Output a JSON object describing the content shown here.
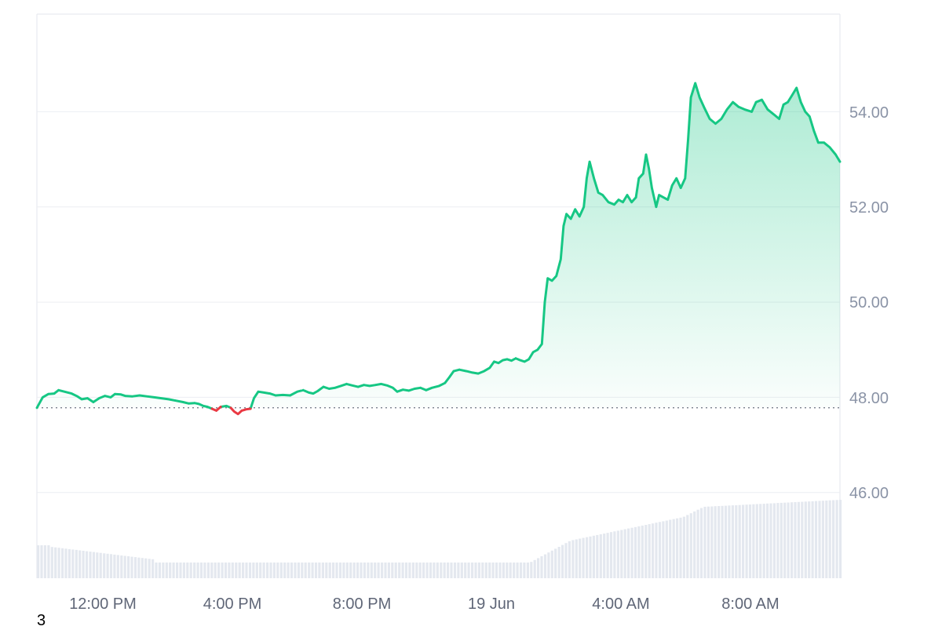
{
  "chart_data": {
    "type": "area",
    "x_ticks": [
      "12:00 PM",
      "4:00 PM",
      "8:00 PM",
      "19 Jun",
      "4:00 AM",
      "8:00 AM"
    ],
    "y_ticks": [
      "46.00",
      "48.00",
      "50.00",
      "52.00",
      "54.00"
    ],
    "ylim": [
      44.2,
      56.05
    ],
    "baseline": 47.78,
    "x_range_hours": [
      0,
      24.7
    ],
    "grid": true,
    "colors": {
      "up": "#16c784",
      "down": "#ea3943",
      "area_top": "#16c784",
      "volume": "#e4e8ef",
      "grid": "#eceef2",
      "axis_text": "#8a93a6"
    },
    "series": [
      {
        "values": [
          [
            0.0,
            47.78
          ],
          [
            0.2,
            48.0
          ],
          [
            0.4,
            48.07
          ],
          [
            0.6,
            48.08
          ],
          [
            0.75,
            48.15
          ],
          [
            0.95,
            48.12
          ],
          [
            1.2,
            48.08
          ],
          [
            1.4,
            48.02
          ],
          [
            1.55,
            47.96
          ],
          [
            1.75,
            47.98
          ],
          [
            1.95,
            47.9
          ],
          [
            2.15,
            47.98
          ],
          [
            2.35,
            48.03
          ],
          [
            2.55,
            48.0
          ],
          [
            2.7,
            48.07
          ],
          [
            2.9,
            48.06
          ],
          [
            3.05,
            48.03
          ],
          [
            3.3,
            48.02
          ],
          [
            3.55,
            48.04
          ],
          [
            3.8,
            48.02
          ],
          [
            4.05,
            48.0
          ],
          [
            4.3,
            47.98
          ],
          [
            4.55,
            47.96
          ],
          [
            4.8,
            47.93
          ],
          [
            5.05,
            47.9
          ],
          [
            5.25,
            47.87
          ],
          [
            5.45,
            47.88
          ],
          [
            5.6,
            47.86
          ],
          [
            5.75,
            47.82
          ],
          [
            5.9,
            47.8
          ],
          [
            6.05,
            47.76
          ],
          [
            6.2,
            47.72
          ],
          [
            6.35,
            47.8
          ],
          [
            6.55,
            47.82
          ],
          [
            6.7,
            47.78
          ],
          [
            6.82,
            47.7
          ],
          [
            6.95,
            47.65
          ],
          [
            7.08,
            47.72
          ],
          [
            7.25,
            47.75
          ],
          [
            7.38,
            47.76
          ],
          [
            7.5,
            47.98
          ],
          [
            7.65,
            48.12
          ],
          [
            7.85,
            48.1
          ],
          [
            8.05,
            48.08
          ],
          [
            8.25,
            48.04
          ],
          [
            8.5,
            48.05
          ],
          [
            8.75,
            48.04
          ],
          [
            9.0,
            48.12
          ],
          [
            9.2,
            48.15
          ],
          [
            9.4,
            48.1
          ],
          [
            9.55,
            48.08
          ],
          [
            9.7,
            48.13
          ],
          [
            9.9,
            48.22
          ],
          [
            10.1,
            48.18
          ],
          [
            10.3,
            48.2
          ],
          [
            10.5,
            48.24
          ],
          [
            10.7,
            48.28
          ],
          [
            10.9,
            48.25
          ],
          [
            11.1,
            48.22
          ],
          [
            11.3,
            48.26
          ],
          [
            11.5,
            48.24
          ],
          [
            11.7,
            48.26
          ],
          [
            11.9,
            48.28
          ],
          [
            12.1,
            48.25
          ],
          [
            12.3,
            48.2
          ],
          [
            12.45,
            48.12
          ],
          [
            12.65,
            48.16
          ],
          [
            12.85,
            48.14
          ],
          [
            13.05,
            48.18
          ],
          [
            13.25,
            48.2
          ],
          [
            13.45,
            48.15
          ],
          [
            13.65,
            48.2
          ],
          [
            13.9,
            48.24
          ],
          [
            14.1,
            48.3
          ],
          [
            14.25,
            48.42
          ],
          [
            14.4,
            48.55
          ],
          [
            14.6,
            48.58
          ],
          [
            14.85,
            48.55
          ],
          [
            15.05,
            48.52
          ],
          [
            15.25,
            48.5
          ],
          [
            15.45,
            48.55
          ],
          [
            15.65,
            48.62
          ],
          [
            15.8,
            48.75
          ],
          [
            15.95,
            48.72
          ],
          [
            16.1,
            48.78
          ],
          [
            16.25,
            48.8
          ],
          [
            16.4,
            48.77
          ],
          [
            16.55,
            48.82
          ],
          [
            16.7,
            48.78
          ],
          [
            16.85,
            48.75
          ],
          [
            17.0,
            48.8
          ],
          [
            17.15,
            48.95
          ],
          [
            17.3,
            49.0
          ],
          [
            17.45,
            49.12
          ],
          [
            17.55,
            50.0
          ],
          [
            17.65,
            50.5
          ],
          [
            17.8,
            50.45
          ],
          [
            17.95,
            50.55
          ],
          [
            18.1,
            50.9
          ],
          [
            18.2,
            51.6
          ],
          [
            18.3,
            51.85
          ],
          [
            18.45,
            51.75
          ],
          [
            18.6,
            51.95
          ],
          [
            18.75,
            51.8
          ],
          [
            18.9,
            52.0
          ],
          [
            19.0,
            52.6
          ],
          [
            19.1,
            52.95
          ],
          [
            19.25,
            52.6
          ],
          [
            19.4,
            52.3
          ],
          [
            19.55,
            52.25
          ],
          [
            19.75,
            52.1
          ],
          [
            19.95,
            52.05
          ],
          [
            20.1,
            52.15
          ],
          [
            20.25,
            52.1
          ],
          [
            20.4,
            52.25
          ],
          [
            20.55,
            52.1
          ],
          [
            20.7,
            52.2
          ],
          [
            20.8,
            52.6
          ],
          [
            20.95,
            52.7
          ],
          [
            21.05,
            53.1
          ],
          [
            21.15,
            52.8
          ],
          [
            21.25,
            52.4
          ],
          [
            21.4,
            52.0
          ],
          [
            21.5,
            52.25
          ],
          [
            21.65,
            52.2
          ],
          [
            21.8,
            52.15
          ],
          [
            21.95,
            52.45
          ],
          [
            22.1,
            52.6
          ],
          [
            22.25,
            52.4
          ],
          [
            22.4,
            52.6
          ],
          [
            22.5,
            53.4
          ],
          [
            22.6,
            54.3
          ],
          [
            22.75,
            54.6
          ],
          [
            22.9,
            54.3
          ],
          [
            23.05,
            54.1
          ],
          [
            23.25,
            53.85
          ],
          [
            23.45,
            53.75
          ],
          [
            23.65,
            53.85
          ],
          [
            23.85,
            54.05
          ],
          [
            24.05,
            54.2
          ],
          [
            24.25,
            54.1
          ],
          [
            24.45,
            54.05
          ],
          [
            24.7,
            54.0
          ],
          [
            24.85,
            54.2
          ],
          [
            25.05,
            54.25
          ],
          [
            25.25,
            54.05
          ],
          [
            25.45,
            53.95
          ],
          [
            25.65,
            53.85
          ],
          [
            25.8,
            54.15
          ],
          [
            25.95,
            54.2
          ],
          [
            26.1,
            54.35
          ],
          [
            26.25,
            54.5
          ],
          [
            26.4,
            54.2
          ],
          [
            26.55,
            54.0
          ],
          [
            26.7,
            53.9
          ],
          [
            26.85,
            53.6
          ],
          [
            27.0,
            53.35
          ],
          [
            27.2,
            53.35
          ],
          [
            27.4,
            53.25
          ],
          [
            27.6,
            53.1
          ],
          [
            27.75,
            52.95
          ]
        ]
      }
    ]
  },
  "footnote": "3"
}
